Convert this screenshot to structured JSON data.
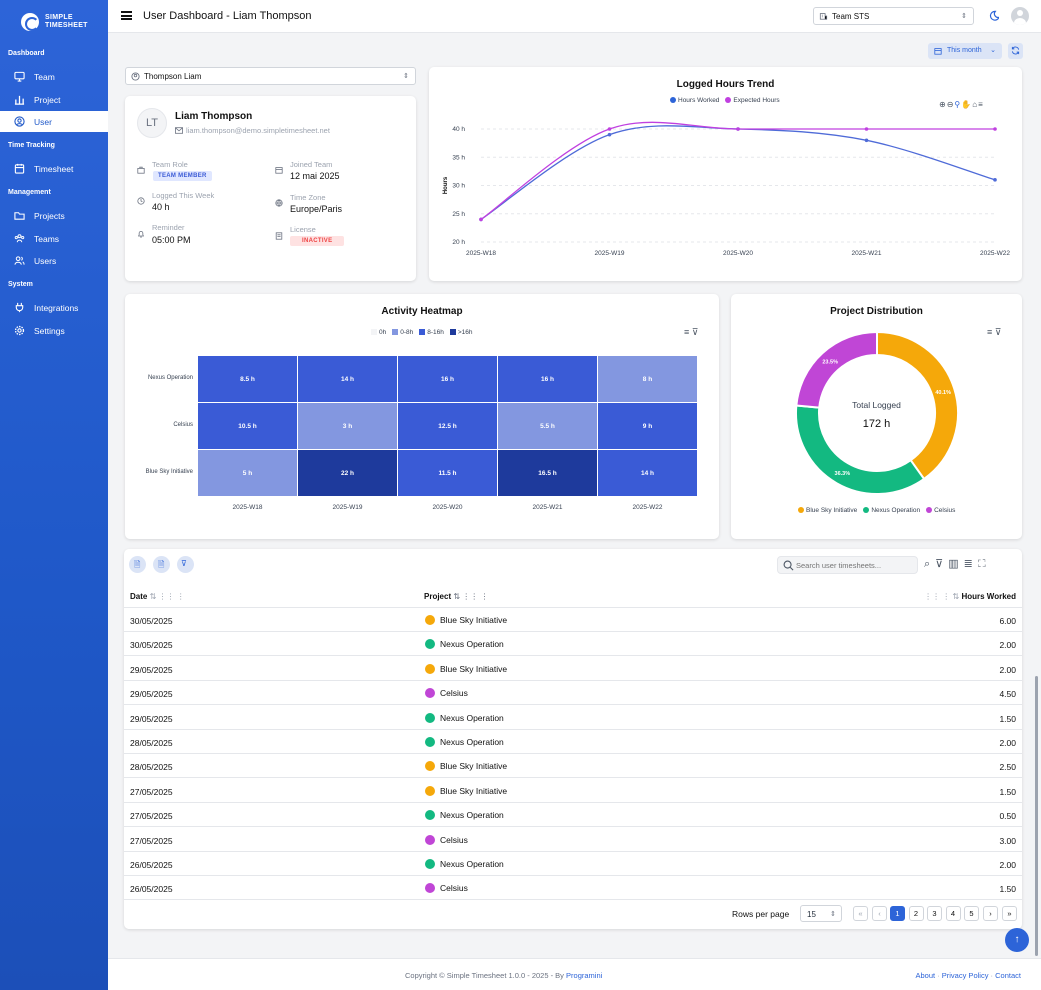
{
  "app": {
    "logo_line1": "SIMPLE",
    "logo_line2": "TIMESHEET"
  },
  "sidebar": {
    "sections": [
      {
        "label": "Dashboard",
        "items": [
          {
            "label": "Team",
            "icon": "monitor-icon"
          },
          {
            "label": "Project",
            "icon": "bar-chart-icon"
          },
          {
            "label": "User",
            "icon": "user-circle-icon",
            "active": true
          }
        ]
      },
      {
        "label": "Time Tracking",
        "items": [
          {
            "label": "Timesheet",
            "icon": "calendar-icon"
          }
        ]
      },
      {
        "label": "Management",
        "items": [
          {
            "label": "Projects",
            "icon": "folder-icon"
          },
          {
            "label": "Teams",
            "icon": "people-icon"
          },
          {
            "label": "Users",
            "icon": "users-icon"
          }
        ]
      },
      {
        "label": "System",
        "items": [
          {
            "label": "Integrations",
            "icon": "plug-icon"
          },
          {
            "label": "Settings",
            "icon": "gear-icon"
          }
        ]
      }
    ]
  },
  "header": {
    "title": "User Dashboard - Liam Thompson",
    "team_select": "Team STS"
  },
  "filters": {
    "period": "This month",
    "user_select": "Thompson Liam"
  },
  "profile": {
    "initials": "LT",
    "name": "Liam Thompson",
    "email": "liam.thompson@demo.simpletimesheet.net",
    "team_role_label": "Team Role",
    "team_role": "TEAM MEMBER",
    "joined_label": "Joined Team",
    "joined": "12 mai 2025",
    "logged_label": "Logged This Week",
    "logged": "40 h",
    "timezone_label": "Time Zone",
    "timezone": "Europe/Paris",
    "reminder_label": "Reminder",
    "reminder": "05:00 PM",
    "license_label": "License",
    "license": "INACTIVE"
  },
  "trend": {
    "title": "Logged Hours Trend",
    "chart_data": {
      "type": "line",
      "categories": [
        "2025-W18",
        "2025-W19",
        "2025-W20",
        "2025-W21",
        "2025-W22"
      ],
      "series": [
        {
          "name": "Hours Worked",
          "color": "#4f6bd8",
          "values": [
            24,
            39,
            40,
            38,
            31
          ]
        },
        {
          "name": "Expected Hours",
          "color": "#c040e0",
          "values": [
            24,
            40,
            40,
            40,
            40
          ]
        }
      ],
      "ylabel": "Hours",
      "ylim": [
        20,
        40
      ],
      "yticks": [
        "20 h",
        "25 h",
        "30 h",
        "35 h",
        "40 h"
      ],
      "ytick_values": [
        20,
        25,
        30,
        35,
        40
      ],
      "grid": true,
      "legend": "top"
    }
  },
  "heatmap": {
    "title": "Activity Heatmap",
    "chart_data": {
      "type": "heatmap",
      "rows": [
        "Nexus Operation",
        "Celsius",
        "Blue Sky Initiative"
      ],
      "columns": [
        "2025-W18",
        "2025-W19",
        "2025-W20",
        "2025-W21",
        "2025-W22"
      ],
      "values": [
        [
          8.5,
          14,
          16,
          16,
          8
        ],
        [
          10.5,
          3,
          12.5,
          5.5,
          9
        ],
        [
          5,
          22,
          11.5,
          16.5,
          14
        ]
      ],
      "labels": [
        [
          "8.5 h",
          "14 h",
          "16 h",
          "16 h",
          "8 h"
        ],
        [
          "10.5 h",
          "3 h",
          "12.5 h",
          "5.5 h",
          "9 h"
        ],
        [
          "5 h",
          "22 h",
          "11.5 h",
          "16.5 h",
          "14 h"
        ]
      ],
      "legend": [
        {
          "label": "0h",
          "color": "#f3f4f6"
        },
        {
          "label": "0-8h",
          "color": "#8397e0"
        },
        {
          "label": "8-16h",
          "color": "#3a5bd6"
        },
        {
          "label": ">16h",
          "color": "#1e3a9c"
        }
      ]
    }
  },
  "distribution": {
    "title": "Project Distribution",
    "center_label": "Total Logged",
    "center_value": "172 h",
    "chart_data": {
      "type": "pie",
      "categories": [
        "Blue Sky Initiative",
        "Nexus Operation",
        "Celsius"
      ],
      "values": [
        40.1,
        36.3,
        23.5
      ],
      "labels": [
        "40.1%",
        "36.3%",
        "23.5%"
      ],
      "colors": [
        "#f5a80a",
        "#13b981",
        "#c046d6"
      ],
      "legend": "bottom"
    }
  },
  "table": {
    "search_placeholder": "Search user timesheets...",
    "columns": {
      "date": "Date",
      "project": "Project",
      "hours": "Hours Worked"
    },
    "rows": [
      {
        "date": "30/05/2025",
        "project": "Blue Sky Initiative",
        "color": "#f5a80a",
        "hours": "6.00"
      },
      {
        "date": "30/05/2025",
        "project": "Nexus Operation",
        "color": "#13b981",
        "hours": "2.00"
      },
      {
        "date": "29/05/2025",
        "project": "Blue Sky Initiative",
        "color": "#f5a80a",
        "hours": "2.00"
      },
      {
        "date": "29/05/2025",
        "project": "Celsius",
        "color": "#c046d6",
        "hours": "4.50"
      },
      {
        "date": "29/05/2025",
        "project": "Nexus Operation",
        "color": "#13b981",
        "hours": "1.50"
      },
      {
        "date": "28/05/2025",
        "project": "Nexus Operation",
        "color": "#13b981",
        "hours": "2.00"
      },
      {
        "date": "28/05/2025",
        "project": "Blue Sky Initiative",
        "color": "#f5a80a",
        "hours": "2.50"
      },
      {
        "date": "27/05/2025",
        "project": "Blue Sky Initiative",
        "color": "#f5a80a",
        "hours": "1.50"
      },
      {
        "date": "27/05/2025",
        "project": "Nexus Operation",
        "color": "#13b981",
        "hours": "0.50"
      },
      {
        "date": "27/05/2025",
        "project": "Celsius",
        "color": "#c046d6",
        "hours": "3.00"
      },
      {
        "date": "26/05/2025",
        "project": "Nexus Operation",
        "color": "#13b981",
        "hours": "2.00"
      },
      {
        "date": "26/05/2025",
        "project": "Celsius",
        "color": "#c046d6",
        "hours": "1.50"
      }
    ],
    "rows_per_page_label": "Rows per page",
    "rows_per_page": "15",
    "pages": [
      "1",
      "2",
      "3",
      "4",
      "5"
    ],
    "current_page": "1"
  },
  "footer": {
    "copyright": "Copyright © Simple Timesheet 1.0.0 - 2025 - By",
    "brand": "Programini",
    "links": [
      "About",
      "Privacy Policy",
      "Contact"
    ]
  }
}
